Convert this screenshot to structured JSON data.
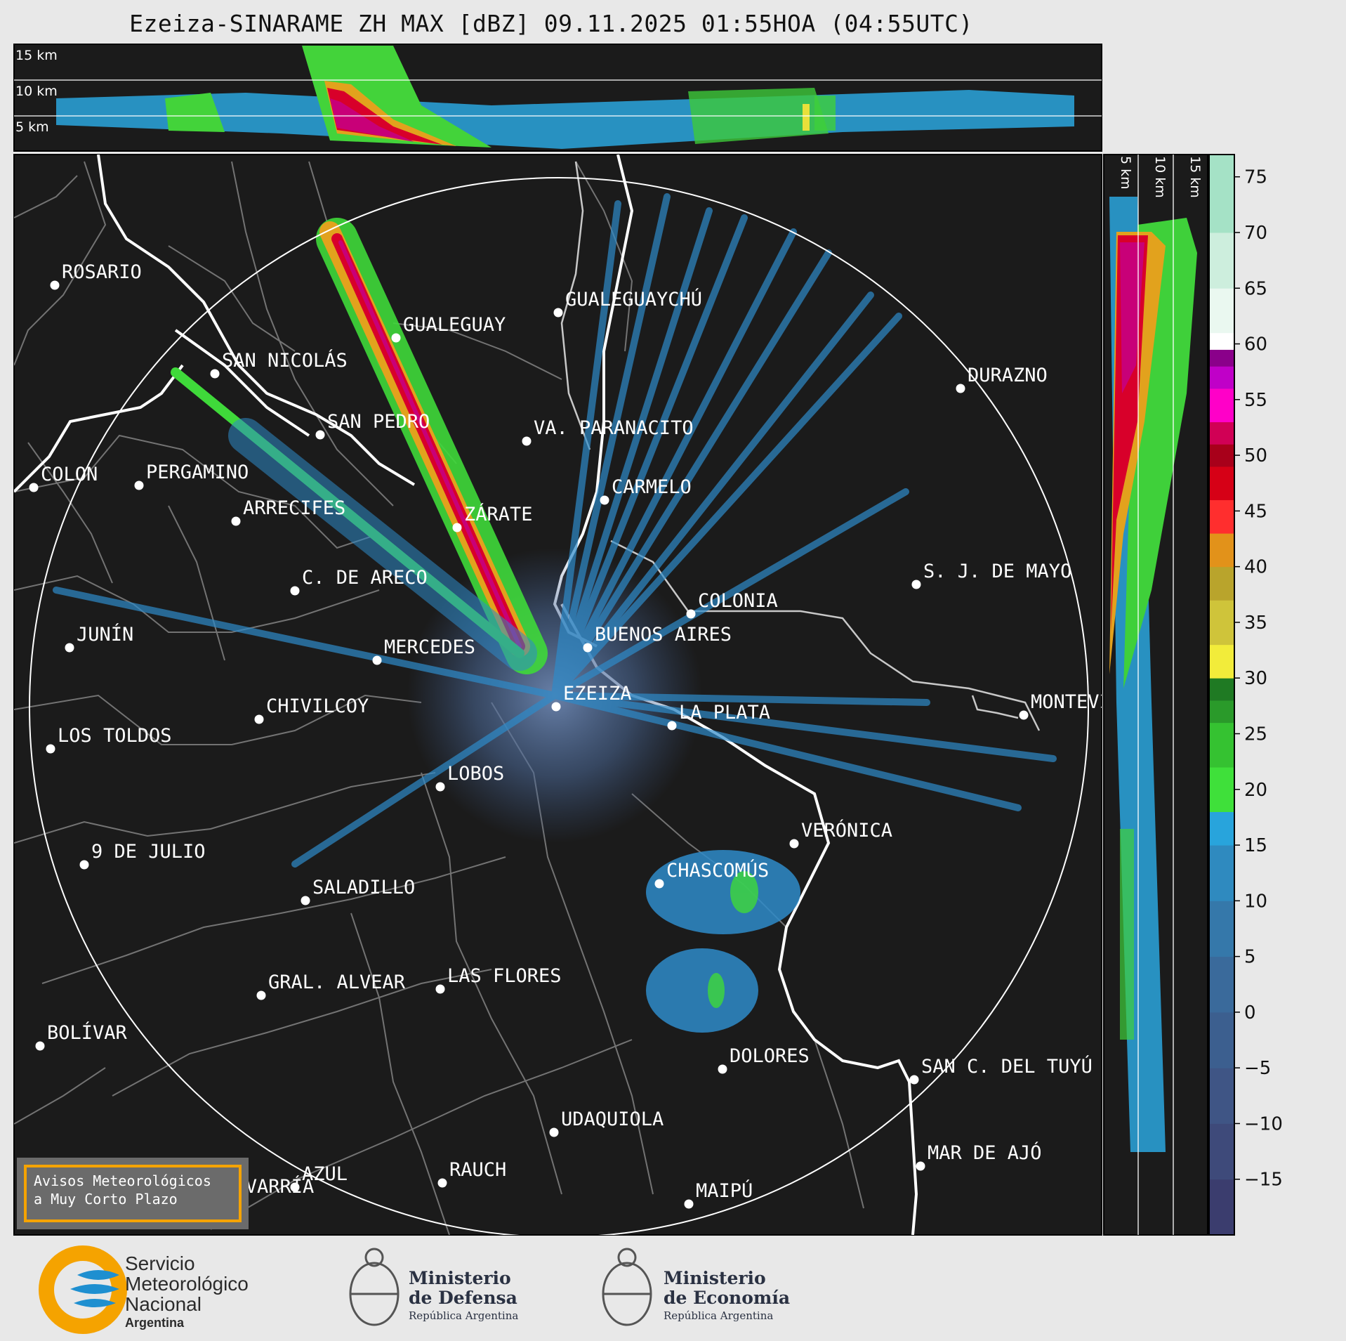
{
  "title": "Ezeiza-SINARAME ZH MAX [dBZ] 09.11.2025 01:55HOA (04:55UTC)",
  "top_panel": {
    "heights": [
      "15 km",
      "10 km",
      "5 km"
    ]
  },
  "side_panel": {
    "heights": [
      "5 km",
      "10 km",
      "15 km"
    ]
  },
  "colorbar": {
    "ticks": [
      "75",
      "70",
      "65",
      "60",
      "55",
      "50",
      "45",
      "40",
      "35",
      "30",
      "25",
      "20",
      "15",
      "10",
      "5",
      "0",
      "−5",
      "−10",
      "−15"
    ],
    "range": [
      -20,
      77
    ]
  },
  "cities": [
    {
      "name": "ROSARIO",
      "x": -23.8,
      "y": 20.0
    },
    {
      "name": "GUALEGUAYCHÚ",
      "x": 0.1,
      "y": 18.7
    },
    {
      "name": "GUALEGUAY",
      "x": -7.6,
      "y": 17.5
    },
    {
      "name": "SAN NICOLÁS",
      "x": -16.2,
      "y": 15.8
    },
    {
      "name": "DURAZNO",
      "x": 19.2,
      "y": 15.1
    },
    {
      "name": "SAN PEDRO",
      "x": -11.2,
      "y": 12.9
    },
    {
      "name": "VA. PARANACITO",
      "x": -1.4,
      "y": 12.6
    },
    {
      "name": "COLON",
      "x": -24.8,
      "y": 10.4
    },
    {
      "name": "PERGAMINO",
      "x": -19.8,
      "y": 10.5
    },
    {
      "name": "CARMELO",
      "x": 2.3,
      "y": 9.8
    },
    {
      "name": "ARRECIFES",
      "x": -15.2,
      "y": 8.8
    },
    {
      "name": "ZÁRATE",
      "x": -4.7,
      "y": 8.5
    },
    {
      "name": "S. J. DE MAYO",
      "x": 17.1,
      "y": 5.8
    },
    {
      "name": "C. DE ARECO",
      "x": -12.4,
      "y": 5.5
    },
    {
      "name": "COLONIA",
      "x": 6.4,
      "y": 4.4
    },
    {
      "name": "BUENOS AIRES",
      "x": 1.5,
      "y": 2.8
    },
    {
      "name": "JUNÍN",
      "x": -23.1,
      "y": 2.8
    },
    {
      "name": "MERCEDES",
      "x": -8.5,
      "y": 2.2
    },
    {
      "name": "MONTEVIDEO",
      "x": 22.2,
      "y": -0.4
    },
    {
      "name": "EZEIZA",
      "x": 0.0,
      "y": 0.0
    },
    {
      "name": "CHIVILCOY",
      "x": -14.1,
      "y": -0.6
    },
    {
      "name": "LA PLATA",
      "x": 5.5,
      "y": -0.9
    },
    {
      "name": "LOS TOLDOS",
      "x": -24.0,
      "y": -2.0
    },
    {
      "name": "LOBOS",
      "x": -5.5,
      "y": -3.8
    },
    {
      "name": "VERÓNICA",
      "x": 11.3,
      "y": -6.5
    },
    {
      "name": "9 DE JULIO",
      "x": -22.4,
      "y": -7.5
    },
    {
      "name": "CHASCOMÚS",
      "x": 4.9,
      "y": -8.4
    },
    {
      "name": "SALADILLO",
      "x": -11.9,
      "y": -9.2
    },
    {
      "name": "GRAL. ALVEAR",
      "x": -14.0,
      "y": -13.7
    },
    {
      "name": "LAS FLORES",
      "x": -5.5,
      "y": -13.4
    },
    {
      "name": "BOLÍVAR",
      "x": -24.5,
      "y": -16.1
    },
    {
      "name": "DOLORES",
      "x": 7.9,
      "y": -17.2
    },
    {
      "name": "SAN C. DEL TUYÚ",
      "x": 17.0,
      "y": -17.7
    },
    {
      "name": "UDAQUIOLA",
      "x": -0.1,
      "y": -20.2
    },
    {
      "name": "AZUL",
      "x": -12.4,
      "y": -22.8
    },
    {
      "name": "RAUCH",
      "x": -5.4,
      "y": -22.6
    },
    {
      "name": "MAR DE AJÓ",
      "x": 17.3,
      "y": -21.8
    },
    {
      "name": "OLAVARRÍA",
      "x": -16.7,
      "y": -23.4
    },
    {
      "name": "MAIPÚ",
      "x": 6.3,
      "y": -23.6
    }
  ],
  "warning": {
    "line1": "Avisos Meteorológicos",
    "line2": "a Muy Corto Plazo"
  },
  "logos": {
    "smn": {
      "line1": "Servicio",
      "line2": "Meteorológico",
      "line3": "Nacional",
      "line4": "Argentina"
    },
    "defensa": {
      "line1": "Ministerio",
      "line2": "de Defensa",
      "line3": "República Argentina"
    },
    "economia": {
      "line1": "Ministerio",
      "line2": "de Economía",
      "line3": "República Argentina"
    }
  },
  "colors": {
    "background": "#1b1b1b",
    "page": "#e8e8e8",
    "accent": "#f5a300",
    "smn_blue": "#1e8fd0"
  }
}
